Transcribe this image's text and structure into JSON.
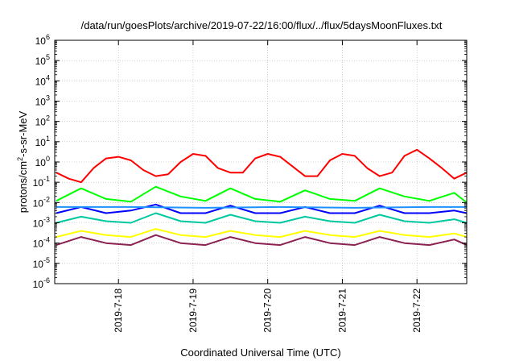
{
  "chart_data": {
    "type": "line",
    "title": "/data/run/goesPlots/archive/2019-07-22/16:00/flux/../flux/5daysMoonFluxes.txt",
    "xlabel": "Coordinated Universal Time (UTC)",
    "ylabel": "protons/cm²-s-sr-MeV",
    "ylabel_parts": {
      "pre": "protons/cm",
      "sup": "2",
      "post": "-s-sr-MeV"
    },
    "yscale": "log",
    "ylim": [
      1e-06,
      1000000.0
    ],
    "y_ticks": [
      {
        "base": "10",
        "exp": "-6",
        "value": 1e-06
      },
      {
        "base": "10",
        "exp": "-5",
        "value": 1e-05
      },
      {
        "base": "10",
        "exp": "-4",
        "value": 0.0001
      },
      {
        "base": "10",
        "exp": "-3",
        "value": 0.001
      },
      {
        "base": "10",
        "exp": "-2",
        "value": 0.01
      },
      {
        "base": "10",
        "exp": "-1",
        "value": 0.1
      },
      {
        "base": "10",
        "exp": "0",
        "value": 1
      },
      {
        "base": "10",
        "exp": "1",
        "value": 10
      },
      {
        "base": "10",
        "exp": "2",
        "value": 100
      },
      {
        "base": "10",
        "exp": "3",
        "value": 1000
      },
      {
        "base": "10",
        "exp": "4",
        "value": 10000
      },
      {
        "base": "10",
        "exp": "5",
        "value": 100000
      },
      {
        "base": "10",
        "exp": "6",
        "value": 1000000
      }
    ],
    "x_ticks": [
      "2019-7-18",
      "2019-7-19",
      "2019-7-20",
      "2019-7-21",
      "2019-7-22"
    ],
    "xlim": [
      "2019-07-17T03:30",
      "2019-07-22T16:00"
    ],
    "grid": true,
    "series": [
      {
        "color": "#ff0000",
        "description": "red series, diurnal ~0.1 to ~5",
        "x": [
          "2019-07-17T04:00",
          "2019-07-17T08:00",
          "2019-07-17T12:00",
          "2019-07-17T16:00",
          "2019-07-17T20:00",
          "2019-07-18T00:00",
          "2019-07-18T04:00",
          "2019-07-18T08:00",
          "2019-07-18T12:00",
          "2019-07-18T16:00",
          "2019-07-18T20:00",
          "2019-07-19T00:00",
          "2019-07-19T04:00",
          "2019-07-19T08:00",
          "2019-07-19T12:00",
          "2019-07-19T16:00",
          "2019-07-19T20:00",
          "2019-07-20T00:00",
          "2019-07-20T04:00",
          "2019-07-20T08:00",
          "2019-07-20T12:00",
          "2019-07-20T16:00",
          "2019-07-20T20:00",
          "2019-07-21T00:00",
          "2019-07-21T04:00",
          "2019-07-21T08:00",
          "2019-07-21T12:00",
          "2019-07-21T16:00",
          "2019-07-21T20:00",
          "2019-07-22T00:00",
          "2019-07-22T04:00",
          "2019-07-22T08:00",
          "2019-07-22T12:00",
          "2019-07-22T16:00"
        ],
        "y": [
          0.3,
          0.15,
          0.1,
          0.5,
          1.5,
          1.8,
          1.2,
          0.4,
          0.2,
          0.25,
          1.0,
          2.5,
          2.0,
          0.5,
          0.3,
          0.3,
          1.5,
          2.5,
          1.8,
          0.6,
          0.2,
          0.2,
          1.2,
          2.5,
          2.0,
          0.5,
          0.2,
          0.3,
          2.0,
          4.0,
          1.5,
          0.5,
          0.15,
          0.3
        ]
      },
      {
        "color": "#00ff00",
        "description": "green series, ~1e-2 baseline with spikes to ~1e-1",
        "x": [
          "2019-07-17T04:00",
          "2019-07-17T12:00",
          "2019-07-17T20:00",
          "2019-07-18T04:00",
          "2019-07-18T12:00",
          "2019-07-18T20:00",
          "2019-07-19T04:00",
          "2019-07-19T12:00",
          "2019-07-19T20:00",
          "2019-07-20T04:00",
          "2019-07-20T12:00",
          "2019-07-20T20:00",
          "2019-07-21T04:00",
          "2019-07-21T12:00",
          "2019-07-21T20:00",
          "2019-07-22T04:00",
          "2019-07-22T12:00",
          "2019-07-22T16:00"
        ],
        "y": [
          0.012,
          0.05,
          0.015,
          0.011,
          0.06,
          0.02,
          0.012,
          0.05,
          0.015,
          0.011,
          0.04,
          0.015,
          0.012,
          0.05,
          0.02,
          0.012,
          0.03,
          0.01
        ]
      },
      {
        "color": "#0000ff",
        "description": "dark blue series, ~3e-3 with spikes to ~1e-2",
        "x": [
          "2019-07-17T04:00",
          "2019-07-17T12:00",
          "2019-07-17T20:00",
          "2019-07-18T04:00",
          "2019-07-18T12:00",
          "2019-07-18T20:00",
          "2019-07-19T04:00",
          "2019-07-19T12:00",
          "2019-07-19T20:00",
          "2019-07-20T04:00",
          "2019-07-20T12:00",
          "2019-07-20T20:00",
          "2019-07-21T04:00",
          "2019-07-21T12:00",
          "2019-07-21T20:00",
          "2019-07-22T04:00",
          "2019-07-22T12:00",
          "2019-07-22T16:00"
        ],
        "y": [
          0.003,
          0.006,
          0.003,
          0.004,
          0.008,
          0.003,
          0.003,
          0.007,
          0.003,
          0.003,
          0.006,
          0.003,
          0.003,
          0.007,
          0.003,
          0.003,
          0.004,
          0.003
        ]
      },
      {
        "color": "#1e90ff",
        "description": "light blue series, ~6e-3",
        "x": [
          "2019-07-17T04:00",
          "2019-07-18T04:00",
          "2019-07-19T04:00",
          "2019-07-20T04:00",
          "2019-07-21T04:00",
          "2019-07-22T04:00",
          "2019-07-22T16:00"
        ],
        "y": [
          0.006,
          0.006,
          0.0055,
          0.006,
          0.0055,
          0.006,
          0.006
        ]
      },
      {
        "color": "#00c8a0",
        "description": "teal series, ~1e-3 with spikes to ~5e-3",
        "x": [
          "2019-07-17T04:00",
          "2019-07-17T12:00",
          "2019-07-17T20:00",
          "2019-07-18T04:00",
          "2019-07-18T12:00",
          "2019-07-18T20:00",
          "2019-07-19T04:00",
          "2019-07-19T12:00",
          "2019-07-19T20:00",
          "2019-07-20T04:00",
          "2019-07-20T12:00",
          "2019-07-20T20:00",
          "2019-07-21T04:00",
          "2019-07-21T12:00",
          "2019-07-21T20:00",
          "2019-07-22T04:00",
          "2019-07-22T12:00",
          "2019-07-22T16:00"
        ],
        "y": [
          0.001,
          0.002,
          0.0012,
          0.001,
          0.003,
          0.0012,
          0.001,
          0.0025,
          0.0012,
          0.001,
          0.002,
          0.0012,
          0.001,
          0.0025,
          0.0012,
          0.001,
          0.0015,
          0.001
        ]
      },
      {
        "color": "#ffff00",
        "description": "yellow series, ~2e-4 with spikes to ~6e-4",
        "x": [
          "2019-07-17T04:00",
          "2019-07-17T12:00",
          "2019-07-17T20:00",
          "2019-07-18T04:00",
          "2019-07-18T12:00",
          "2019-07-18T20:00",
          "2019-07-19T04:00",
          "2019-07-19T12:00",
          "2019-07-19T20:00",
          "2019-07-20T04:00",
          "2019-07-20T12:00",
          "2019-07-20T20:00",
          "2019-07-21T04:00",
          "2019-07-21T12:00",
          "2019-07-21T20:00",
          "2019-07-22T04:00",
          "2019-07-22T12:00",
          "2019-07-22T16:00"
        ],
        "y": [
          0.0002,
          0.0004,
          0.00025,
          0.0002,
          0.0005,
          0.00025,
          0.0002,
          0.0004,
          0.00025,
          0.0002,
          0.0004,
          0.00025,
          0.0002,
          0.0004,
          0.00025,
          0.0002,
          0.0003,
          0.0002
        ]
      },
      {
        "color": "#8b2252",
        "description": "maroon series, ~8e-5 with spikes to ~3e-4",
        "x": [
          "2019-07-17T04:00",
          "2019-07-17T12:00",
          "2019-07-17T20:00",
          "2019-07-18T04:00",
          "2019-07-18T12:00",
          "2019-07-18T20:00",
          "2019-07-19T04:00",
          "2019-07-19T12:00",
          "2019-07-19T20:00",
          "2019-07-20T04:00",
          "2019-07-20T12:00",
          "2019-07-20T20:00",
          "2019-07-21T04:00",
          "2019-07-21T12:00",
          "2019-07-21T20:00",
          "2019-07-22T04:00",
          "2019-07-22T12:00",
          "2019-07-22T16:00"
        ],
        "y": [
          8e-05,
          0.0002,
          0.0001,
          8e-05,
          0.00025,
          0.0001,
          8e-05,
          0.0002,
          0.0001,
          8e-05,
          0.0002,
          0.0001,
          8e-05,
          0.0002,
          0.0001,
          8e-05,
          0.00015,
          8e-05
        ]
      }
    ]
  }
}
